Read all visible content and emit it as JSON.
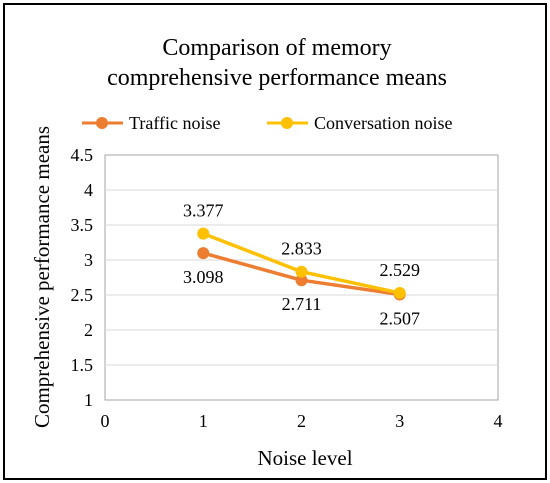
{
  "chart_data": {
    "type": "line",
    "title_lines": [
      "Comparison of memory",
      "comprehensive performance means"
    ],
    "xlabel": "Noise level",
    "ylabel": "Comprehensive performance means",
    "xlim": [
      0,
      4
    ],
    "ylim": [
      1,
      4.5
    ],
    "xticks": [
      0,
      1,
      2,
      3,
      4
    ],
    "yticks": [
      1,
      1.5,
      2,
      2.5,
      3,
      3.5,
      4,
      4.5
    ],
    "xtick_labels": [
      "0",
      "1",
      "2",
      "3",
      "4"
    ],
    "ytick_labels": [
      "1",
      "1.5",
      "2",
      "2.5",
      "3",
      "3.5",
      "4",
      "4.5"
    ],
    "grid": "horizontal",
    "legend_position": "top",
    "series": [
      {
        "name": "Traffic noise",
        "color": "#ED7D31",
        "x": [
          1,
          2,
          3
        ],
        "y": [
          3.098,
          2.711,
          2.507
        ],
        "labels": [
          "3.098",
          "2.711",
          "2.507"
        ],
        "label_position": "below"
      },
      {
        "name": "Conversation noise",
        "color": "#FFC000",
        "x": [
          1,
          2,
          3
        ],
        "y": [
          3.377,
          2.833,
          2.529
        ],
        "labels": [
          "3.377",
          "2.833",
          "2.529"
        ],
        "label_position": "above"
      }
    ]
  }
}
